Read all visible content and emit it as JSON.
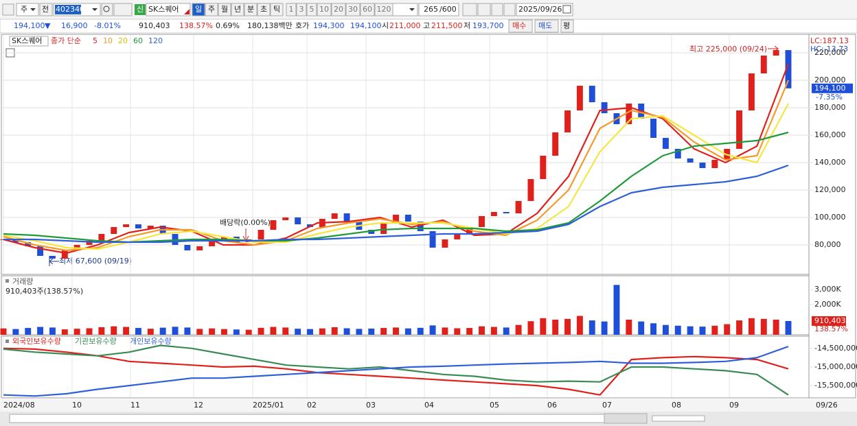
{
  "toolbar": {
    "market": "주",
    "prev": "전",
    "code": "402340",
    "new_badge": "신",
    "name": "SK스퀘어",
    "periods": [
      "일",
      "주",
      "월",
      "년",
      "분",
      "초",
      "틱"
    ],
    "intervals": [
      "1",
      "3",
      "5",
      "10",
      "20",
      "30",
      "60",
      "120"
    ],
    "count": "265",
    "count_max": "/600",
    "date": "2025/09/26"
  },
  "quote": {
    "price": "194,100",
    "arrow": "▼",
    "change": "16,900",
    "change_pct": "-8.01%",
    "volume": "910,403",
    "volume_pct": "138.57%",
    "turnover": "0.69%",
    "amount": "180,138백만",
    "bid_label": "호가",
    "ask": "194,300",
    "bid": "194,100",
    "open_label": "시",
    "open": "211,000",
    "high_label": "고",
    "high": "211,500",
    "low_label": "저",
    "low": "193,700",
    "buy": "매수",
    "sell": "매도",
    "avg": "평"
  },
  "time_axis": [
    "2024/08",
    "10",
    "11",
    "12",
    "2025/01",
    "02",
    "03",
    "04",
    "05",
    "06",
    "07",
    "08",
    "09",
    "09/26"
  ],
  "chart_data": [
    {
      "type": "candle",
      "name": "SK스퀘어",
      "legend_label": "종가 단순",
      "up_color": "#e0201b",
      "down_color": "#1f4fd8",
      "close": [
        84000,
        82000,
        79000,
        72000,
        70000,
        76000,
        80000,
        83000,
        88000,
        93000,
        95000,
        92000,
        94000,
        88000,
        80000,
        76000,
        79000,
        84000,
        86000,
        82000,
        84000,
        91000,
        98000,
        100000,
        95000,
        93000,
        99000,
        103000,
        97000,
        91000,
        88000,
        96000,
        102000,
        97000,
        90000,
        78000,
        84000,
        88000,
        93000,
        101000,
        104000,
        103000,
        112000,
        128000,
        145000,
        162000,
        178000,
        196000,
        184000,
        176000,
        168000,
        183000,
        172000,
        158000,
        150000,
        143000,
        140000,
        136000,
        142000,
        150000,
        178000,
        205000,
        218000,
        222000,
        194100
      ],
      "series": [
        {
          "name": "5",
          "color": "#e0201b",
          "values": [
            84000,
            78000,
            74000,
            80000,
            89000,
            93000,
            90000,
            80000,
            80000,
            85000,
            96000,
            97000,
            100000,
            93000,
            98000,
            87000,
            88000,
            103000,
            130000,
            178000,
            180000,
            172000,
            150000,
            140000,
            152000,
            212000
          ]
        },
        {
          "name": "10",
          "color": "#f39a2b",
          "values": [
            86000,
            80000,
            76000,
            78000,
            86000,
            91000,
            91000,
            83000,
            80000,
            83000,
            92000,
            96000,
            99000,
            95000,
            97000,
            90000,
            87000,
            98000,
            120000,
            165000,
            178000,
            173000,
            155000,
            142000,
            145000,
            200000
          ]
        },
        {
          "name": "20",
          "color": "#f5e642",
          "values": [
            87000,
            83000,
            78000,
            77000,
            82000,
            88000,
            90000,
            86000,
            82000,
            82000,
            88000,
            93000,
            96000,
            96000,
            96000,
            92000,
            88000,
            92000,
            108000,
            148000,
            172000,
            174000,
            160000,
            146000,
            140000,
            183000
          ]
        },
        {
          "name": "60",
          "color": "#1f9a3a",
          "values": [
            88000,
            87000,
            85000,
            83000,
            82000,
            83000,
            84000,
            84000,
            83000,
            83000,
            85000,
            88000,
            91000,
            92000,
            92000,
            92000,
            90000,
            91000,
            96000,
            112000,
            130000,
            145000,
            152000,
            154000,
            156000,
            162000
          ]
        },
        {
          "name": "120",
          "color": "#2f5fd8",
          "values": [
            84000,
            84000,
            83000,
            82000,
            82000,
            82000,
            83000,
            83000,
            83000,
            84000,
            84000,
            85000,
            86000,
            87000,
            88000,
            88000,
            89000,
            90000,
            95000,
            108000,
            118000,
            122000,
            124000,
            126000,
            130000,
            138000
          ]
        }
      ],
      "ylim": [
        59000,
        233000
      ],
      "yticks": [
        {
          "value": 80000,
          "label": "80,000"
        },
        {
          "value": 100000,
          "label": "100,000"
        },
        {
          "value": 120000,
          "label": "120,000"
        },
        {
          "value": 140000,
          "label": "140,000"
        },
        {
          "value": 160000,
          "label": "160,000"
        },
        {
          "value": 180000,
          "label": "180,000"
        },
        {
          "value": 200000,
          "label": "200,000"
        },
        {
          "value": 220000,
          "label": "220,000"
        }
      ],
      "grid": true,
      "lc": "LC:187.13",
      "hc": "HC:-13.73",
      "last": {
        "value": 194100,
        "label": "194,100"
      },
      "last_change": "-7.35%",
      "annotations": {
        "high": "최고 225,000 (09/24)",
        "low": "최저 67,600 (09/19)",
        "dividend": "배당락(0.00%)"
      }
    },
    {
      "type": "bar",
      "title": "거래량",
      "subtitle": "910,403주(138.57%)",
      "values": [
        420000,
        380000,
        450000,
        520000,
        480000,
        360000,
        400000,
        430000,
        500000,
        560000,
        520000,
        450000,
        400000,
        470000,
        530000,
        480000,
        390000,
        420000,
        380000,
        350000,
        330000,
        460000,
        520000,
        480000,
        400000,
        380000,
        420000,
        500000,
        430000,
        390000,
        410000,
        450000,
        480000,
        420000,
        460000,
        620000,
        480000,
        430000,
        450000,
        560000,
        520000,
        480000,
        650000,
        900000,
        1100000,
        1000000,
        1050000,
        1250000,
        950000,
        880000,
        3300000,
        1000000,
        880000,
        760000,
        650000,
        600000,
        560000,
        540000,
        600000,
        700000,
        950000,
        1100000,
        1050000,
        1000000,
        910403
      ],
      "ylim": [
        0,
        3860000
      ],
      "yticks": [
        {
          "value": 2000000,
          "label": "2,000K"
        },
        {
          "value": 3000000,
          "label": "3,000K"
        }
      ],
      "last": {
        "value": 910403,
        "label": "910,403"
      },
      "last_change": "138.57%"
    },
    {
      "type": "line",
      "series": [
        {
          "name": "외국인보유수량",
          "color": "#e0201b",
          "values": [
            -14500000,
            -14520000,
            -14600000,
            -14700000,
            -14850000,
            -14900000,
            -14950000,
            -15000000,
            -14980000,
            -15050000,
            -15150000,
            -15200000,
            -15250000,
            -15300000,
            -15350000,
            -15400000,
            -15450000,
            -15500000,
            -15600000,
            -15750000,
            -14800000,
            -14750000,
            -14720000,
            -14750000,
            -14800000,
            -15050000
          ]
        },
        {
          "name": "기관보유수량",
          "color": "#3a8a55",
          "values": [
            -14520000,
            -14600000,
            -14650000,
            -14700000,
            -14600000,
            -14420000,
            -14500000,
            -14650000,
            -14800000,
            -14950000,
            -15000000,
            -15050000,
            -15000000,
            -15100000,
            -15200000,
            -15250000,
            -15350000,
            -15400000,
            -15380000,
            -15400000,
            -15000000,
            -15000000,
            -15050000,
            -15100000,
            -15200000,
            -15750000
          ]
        },
        {
          "name": "개인보유수량",
          "color": "#2f5fd8",
          "values": [
            -15750000,
            -15780000,
            -15720000,
            -15600000,
            -15500000,
            -15400000,
            -15300000,
            -15300000,
            -15250000,
            -15200000,
            -15150000,
            -15100000,
            -15050000,
            -15000000,
            -14980000,
            -14950000,
            -14920000,
            -14900000,
            -14880000,
            -14850000,
            -14900000,
            -14900000,
            -14880000,
            -14850000,
            -14750000,
            -14450000
          ]
        }
      ],
      "ylim": [
        -15830000,
        -14190000
      ],
      "yticks": [
        {
          "value": -14500000,
          "label": "-14,500,000"
        },
        {
          "value": -15000000,
          "label": "-15,000,000"
        },
        {
          "value": -15500000,
          "label": "-15,500,000"
        }
      ]
    }
  ]
}
